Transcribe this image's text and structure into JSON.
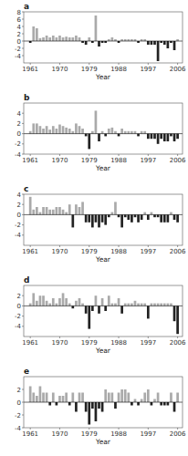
{
  "chart_data": [
    {
      "type": "bar",
      "title": "a",
      "xlabel": "Year",
      "x": [
        1961,
        1962,
        1963,
        1964,
        1965,
        1966,
        1967,
        1968,
        1969,
        1970,
        1971,
        1972,
        1973,
        1974,
        1975,
        1976,
        1977,
        1978,
        1979,
        1980,
        1981,
        1982,
        1983,
        1984,
        1985,
        1986,
        1987,
        1988,
        1989,
        1990,
        1991,
        1992,
        1993,
        1994,
        1995,
        1996,
        1997,
        1998,
        1999,
        2000,
        2001,
        2002,
        2003,
        2004,
        2005,
        2006
      ],
      "values": [
        -0.5,
        4.0,
        3.5,
        0.8,
        1.0,
        1.5,
        1.0,
        1.5,
        1.0,
        1.5,
        1.0,
        1.2,
        1.0,
        1.0,
        1.5,
        1.0,
        -0.5,
        -1.0,
        1.0,
        -0.5,
        7.0,
        -1.5,
        -0.5,
        -0.5,
        0.5,
        1.0,
        0.5,
        -0.5,
        0.5,
        0.5,
        0.5,
        0.5,
        0.5,
        -0.5,
        0.5,
        0.5,
        -1.0,
        -1.0,
        -1.0,
        -5.5,
        -0.5,
        -1.0,
        -2.0,
        -0.5,
        -2.5,
        0.5
      ],
      "colors": [
        "#222222",
        "#aaaaaa",
        "#aaaaaa",
        "#aaaaaa",
        "#aaaaaa",
        "#aaaaaa",
        "#aaaaaa",
        "#aaaaaa",
        "#aaaaaa",
        "#aaaaaa",
        "#aaaaaa",
        "#aaaaaa",
        "#aaaaaa",
        "#aaaaaa",
        "#aaaaaa",
        "#aaaaaa",
        "#222222",
        "#222222",
        "#aaaaaa",
        "#222222",
        "#aaaaaa",
        "#222222",
        "#222222",
        "#222222",
        "#aaaaaa",
        "#aaaaaa",
        "#aaaaaa",
        "#222222",
        "#aaaaaa",
        "#aaaaaa",
        "#aaaaaa",
        "#aaaaaa",
        "#aaaaaa",
        "#222222",
        "#aaaaaa",
        "#aaaaaa",
        "#222222",
        "#222222",
        "#222222",
        "#222222",
        "#222222",
        "#222222",
        "#222222",
        "#222222",
        "#222222",
        "#aaaaaa"
      ],
      "xlim": [
        1959.0,
        2007.5
      ],
      "xticks": [
        1961,
        1970,
        1979,
        1988,
        1997,
        2006
      ],
      "ylim": [
        -6,
        8
      ],
      "yticks": [
        -4,
        -2,
        0,
        2,
        4,
        6,
        8
      ],
      "grid": false
    },
    {
      "type": "bar",
      "title": "b",
      "xlabel": "Year",
      "x": [
        1961,
        1962,
        1963,
        1964,
        1965,
        1966,
        1967,
        1968,
        1969,
        1970,
        1971,
        1972,
        1973,
        1974,
        1975,
        1976,
        1977,
        1978,
        1979,
        1980,
        1981,
        1982,
        1983,
        1984,
        1985,
        1986,
        1987,
        1988,
        1989,
        1990,
        1991,
        1992,
        1993,
        1994,
        1995,
        1996,
        1997,
        1998,
        1999,
        2000,
        2001,
        2002,
        2003,
        2004,
        2005,
        2006
      ],
      "values": [
        0.5,
        2.0,
        2.0,
        1.5,
        1.0,
        1.5,
        0.8,
        1.5,
        1.0,
        1.8,
        1.5,
        1.2,
        1.0,
        0.5,
        2.0,
        1.5,
        1.0,
        -0.5,
        -3.0,
        0.5,
        4.5,
        -1.5,
        0.5,
        -0.5,
        1.0,
        1.2,
        0.5,
        -0.5,
        1.0,
        0.5,
        0.5,
        0.5,
        0.5,
        -0.5,
        0.5,
        0.5,
        -1.0,
        -1.0,
        -1.0,
        -2.0,
        -1.0,
        -1.5,
        -1.5,
        -0.5,
        -1.5,
        -1.0
      ],
      "colors": [
        "#aaaaaa",
        "#aaaaaa",
        "#aaaaaa",
        "#aaaaaa",
        "#aaaaaa",
        "#aaaaaa",
        "#aaaaaa",
        "#aaaaaa",
        "#aaaaaa",
        "#aaaaaa",
        "#aaaaaa",
        "#aaaaaa",
        "#aaaaaa",
        "#aaaaaa",
        "#aaaaaa",
        "#aaaaaa",
        "#aaaaaa",
        "#222222",
        "#222222",
        "#aaaaaa",
        "#aaaaaa",
        "#222222",
        "#aaaaaa",
        "#222222",
        "#aaaaaa",
        "#aaaaaa",
        "#aaaaaa",
        "#222222",
        "#aaaaaa",
        "#aaaaaa",
        "#aaaaaa",
        "#aaaaaa",
        "#aaaaaa",
        "#222222",
        "#aaaaaa",
        "#aaaaaa",
        "#222222",
        "#222222",
        "#222222",
        "#222222",
        "#222222",
        "#222222",
        "#222222",
        "#222222",
        "#222222",
        "#222222"
      ],
      "xlim": [
        1959.0,
        2007.5
      ],
      "xticks": [
        1961,
        1970,
        1979,
        1988,
        1997,
        2006
      ],
      "ylim": [
        -4,
        6
      ],
      "yticks": [
        -4,
        -2,
        0,
        2,
        4
      ],
      "grid": false
    },
    {
      "type": "bar",
      "title": "c",
      "xlabel": "Year",
      "x": [
        1961,
        1962,
        1963,
        1964,
        1965,
        1966,
        1967,
        1968,
        1969,
        1970,
        1971,
        1972,
        1973,
        1974,
        1975,
        1976,
        1977,
        1978,
        1979,
        1980,
        1981,
        1982,
        1983,
        1984,
        1985,
        1986,
        1987,
        1988,
        1989,
        1990,
        1991,
        1992,
        1993,
        1994,
        1995,
        1996,
        1997,
        1998,
        1999,
        2000,
        2001,
        2002,
        2003,
        2004,
        2005,
        2006
      ],
      "values": [
        3.5,
        1.0,
        1.5,
        0.5,
        1.5,
        1.5,
        1.0,
        1.0,
        1.5,
        1.5,
        1.0,
        0.5,
        2.0,
        -2.5,
        2.0,
        1.5,
        2.5,
        -1.5,
        -1.5,
        -2.5,
        -1.5,
        -2.5,
        -1.5,
        -2.0,
        -0.5,
        0.5,
        2.5,
        -0.5,
        -2.5,
        -0.5,
        -1.0,
        -1.5,
        -0.5,
        -1.5,
        -1.0,
        0.5,
        -1.0,
        0.5,
        -0.5,
        -0.5,
        -1.5,
        -1.5,
        -1.5,
        0.5,
        -1.0,
        -1.5
      ],
      "colors": [
        "#aaaaaa",
        "#aaaaaa",
        "#aaaaaa",
        "#aaaaaa",
        "#aaaaaa",
        "#aaaaaa",
        "#aaaaaa",
        "#aaaaaa",
        "#aaaaaa",
        "#aaaaaa",
        "#aaaaaa",
        "#aaaaaa",
        "#aaaaaa",
        "#222222",
        "#aaaaaa",
        "#aaaaaa",
        "#aaaaaa",
        "#222222",
        "#222222",
        "#222222",
        "#222222",
        "#222222",
        "#222222",
        "#222222",
        "#222222",
        "#aaaaaa",
        "#aaaaaa",
        "#222222",
        "#222222",
        "#222222",
        "#222222",
        "#222222",
        "#222222",
        "#222222",
        "#222222",
        "#aaaaaa",
        "#222222",
        "#aaaaaa",
        "#222222",
        "#222222",
        "#222222",
        "#222222",
        "#222222",
        "#aaaaaa",
        "#222222",
        "#222222"
      ],
      "xlim": [
        1959.0,
        2007.5
      ],
      "xticks": [
        1961,
        1970,
        1979,
        1988,
        1997,
        2006
      ],
      "ylim": [
        -6,
        4
      ],
      "yticks": [
        -4,
        -2,
        0,
        2,
        4
      ],
      "grid": false
    },
    {
      "type": "bar",
      "title": "d",
      "xlabel": "Year",
      "x": [
        1961,
        1962,
        1963,
        1964,
        1965,
        1966,
        1967,
        1968,
        1969,
        1970,
        1971,
        1972,
        1973,
        1974,
        1975,
        1976,
        1977,
        1978,
        1979,
        1980,
        1981,
        1982,
        1983,
        1984,
        1985,
        1986,
        1987,
        1988,
        1989,
        1990,
        1991,
        1992,
        1993,
        1994,
        1995,
        1996,
        1997,
        1998,
        1999,
        2000,
        2001,
        2002,
        2003,
        2004,
        2005,
        2006
      ],
      "values": [
        0.5,
        2.5,
        1.0,
        2.0,
        2.0,
        1.0,
        0.5,
        1.5,
        0.5,
        1.5,
        2.5,
        1.5,
        0.5,
        -0.5,
        1.0,
        1.5,
        0.5,
        -1.5,
        -4.5,
        -1.0,
        2.0,
        -1.5,
        1.5,
        -1.0,
        2.0,
        0.5,
        0.5,
        1.5,
        -1.5,
        0.5,
        0.5,
        0.5,
        1.0,
        0.5,
        0.5,
        0.5,
        -2.5,
        0.5,
        0.5,
        0.5,
        0.5,
        0.5,
        0.5,
        0.5,
        -3.0,
        -5.5
      ],
      "colors": [
        "#aaaaaa",
        "#aaaaaa",
        "#aaaaaa",
        "#aaaaaa",
        "#aaaaaa",
        "#aaaaaa",
        "#aaaaaa",
        "#aaaaaa",
        "#aaaaaa",
        "#aaaaaa",
        "#aaaaaa",
        "#aaaaaa",
        "#aaaaaa",
        "#222222",
        "#aaaaaa",
        "#aaaaaa",
        "#aaaaaa",
        "#222222",
        "#222222",
        "#222222",
        "#aaaaaa",
        "#222222",
        "#aaaaaa",
        "#222222",
        "#aaaaaa",
        "#aaaaaa",
        "#aaaaaa",
        "#aaaaaa",
        "#222222",
        "#aaaaaa",
        "#aaaaaa",
        "#aaaaaa",
        "#aaaaaa",
        "#aaaaaa",
        "#aaaaaa",
        "#aaaaaa",
        "#222222",
        "#aaaaaa",
        "#aaaaaa",
        "#aaaaaa",
        "#aaaaaa",
        "#aaaaaa",
        "#aaaaaa",
        "#aaaaaa",
        "#222222",
        "#222222"
      ],
      "xlim": [
        1959.0,
        2007.5
      ],
      "xticks": [
        1961,
        1970,
        1979,
        1988,
        1997,
        2006
      ],
      "ylim": [
        -6,
        4
      ],
      "yticks": [
        -4,
        -2,
        0,
        2
      ],
      "grid": false
    },
    {
      "type": "bar",
      "title": "e",
      "xlabel": "Year",
      "x": [
        1961,
        1962,
        1963,
        1964,
        1965,
        1966,
        1967,
        1968,
        1969,
        1970,
        1971,
        1972,
        1973,
        1974,
        1975,
        1976,
        1977,
        1978,
        1979,
        1980,
        1981,
        1982,
        1983,
        1984,
        1985,
        1986,
        1987,
        1988,
        1989,
        1990,
        1991,
        1992,
        1993,
        1994,
        1995,
        1996,
        1997,
        1998,
        1999,
        2000,
        2001,
        2002,
        2003,
        2004,
        2005,
        2006
      ],
      "values": [
        2.5,
        1.5,
        1.0,
        2.5,
        1.5,
        1.5,
        -0.5,
        1.5,
        -0.5,
        1.0,
        1.0,
        1.5,
        -0.5,
        1.5,
        -1.5,
        1.5,
        1.5,
        -1.5,
        -3.5,
        -1.0,
        -3.0,
        -1.0,
        -1.5,
        2.0,
        1.5,
        1.5,
        -1.0,
        1.5,
        2.0,
        2.0,
        1.5,
        -0.5,
        0.5,
        -0.5,
        0.5,
        1.5,
        2.0,
        -0.5,
        0.5,
        1.5,
        -0.5,
        -0.5,
        -0.5,
        1.5,
        -1.5,
        1.5
      ],
      "colors": [
        "#aaaaaa",
        "#aaaaaa",
        "#aaaaaa",
        "#aaaaaa",
        "#aaaaaa",
        "#aaaaaa",
        "#222222",
        "#aaaaaa",
        "#222222",
        "#aaaaaa",
        "#aaaaaa",
        "#aaaaaa",
        "#222222",
        "#aaaaaa",
        "#222222",
        "#aaaaaa",
        "#aaaaaa",
        "#222222",
        "#222222",
        "#222222",
        "#222222",
        "#222222",
        "#222222",
        "#aaaaaa",
        "#aaaaaa",
        "#aaaaaa",
        "#222222",
        "#aaaaaa",
        "#aaaaaa",
        "#aaaaaa",
        "#aaaaaa",
        "#222222",
        "#aaaaaa",
        "#222222",
        "#aaaaaa",
        "#aaaaaa",
        "#aaaaaa",
        "#222222",
        "#aaaaaa",
        "#aaaaaa",
        "#222222",
        "#222222",
        "#222222",
        "#aaaaaa",
        "#222222",
        "#aaaaaa"
      ],
      "xlim": [
        1959.0,
        2007.5
      ],
      "xticks": [
        1961,
        1970,
        1979,
        1988,
        1997,
        2006
      ],
      "ylim": [
        -4,
        4
      ],
      "yticks": [
        -4,
        -2,
        0,
        2
      ],
      "grid": false
    }
  ]
}
